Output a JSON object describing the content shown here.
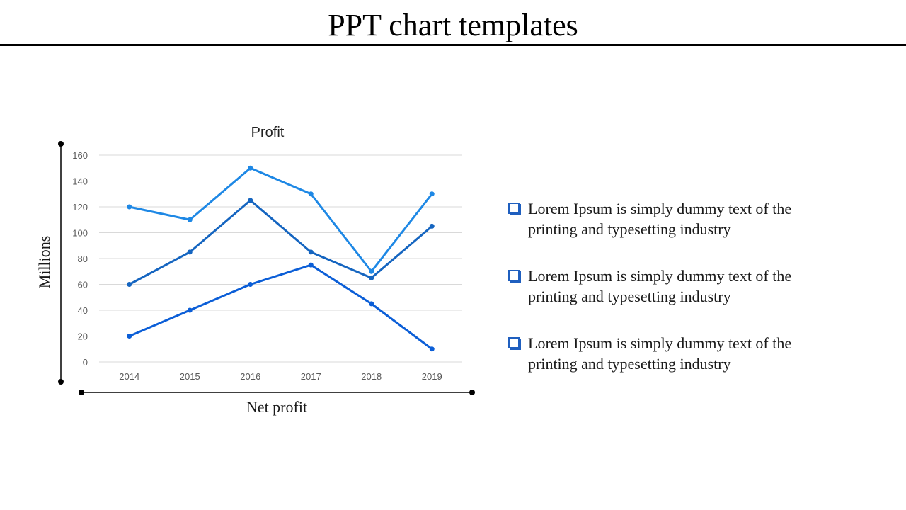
{
  "slide": {
    "title": "PPT chart templates"
  },
  "bullets": [
    {
      "text": "Lorem Ipsum is simply dummy text of the printing and typesetting industry"
    },
    {
      "text": "Lorem Ipsum is simply dummy text of the printing and typesetting industry"
    },
    {
      "text": "Lorem Ipsum is simply dummy text of the printing and typesetting industry"
    }
  ],
  "colors": {
    "series_light": "#1e88e5",
    "series_mid": "#1565c0",
    "series_dark": "#0b5ed7",
    "bullet": "#1f5fbf"
  },
  "chart_data": {
    "type": "line",
    "title": "Profit",
    "xlabel": "Net profit",
    "ylabel": "Millions",
    "categories": [
      "2014",
      "2015",
      "2016",
      "2017",
      "2018",
      "2019"
    ],
    "ylim": [
      0,
      160
    ],
    "yticks": [
      0,
      20,
      40,
      60,
      80,
      100,
      120,
      140,
      160
    ],
    "grid": true,
    "series": [
      {
        "values": [
          120,
          110,
          150,
          130,
          70,
          130
        ],
        "color": "#1e88e5"
      },
      {
        "values": [
          60,
          85,
          125,
          85,
          65,
          105
        ],
        "color": "#1565c0"
      },
      {
        "values": [
          20,
          40,
          60,
          75,
          45,
          10
        ],
        "color": "#0b5ed7"
      }
    ]
  }
}
